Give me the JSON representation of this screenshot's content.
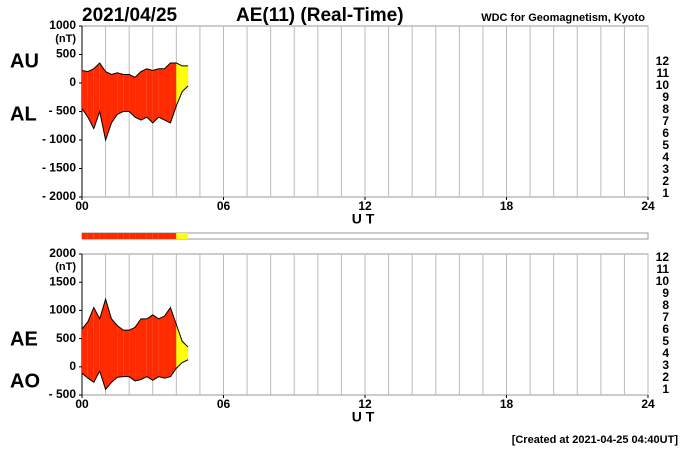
{
  "header": {
    "date": "2021/04/25",
    "title": "AE(11) (Real-Time)",
    "source": "WDC for Geomagnetism, Kyoto"
  },
  "footer": "[Created at 2021-04-25 04:40UT]",
  "chart_data": [
    {
      "type": "area-band",
      "y_unit": "(nT)",
      "x_label": "U T",
      "x": [
        0,
        0.25,
        0.5,
        0.75,
        1,
        1.25,
        1.5,
        1.75,
        2,
        2.25,
        2.5,
        2.75,
        3,
        3.25,
        3.5,
        3.75,
        4,
        4.25,
        4.5
      ],
      "series": [
        {
          "name": "AU",
          "color": "#000000",
          "values": [
            220,
            200,
            250,
            350,
            200,
            150,
            180,
            150,
            150,
            100,
            200,
            250,
            220,
            250,
            250,
            350,
            350,
            300,
            300
          ]
        },
        {
          "name": "AL",
          "color": "#000000",
          "values": [
            -450,
            -600,
            -800,
            -500,
            -1000,
            -700,
            -550,
            -500,
            -500,
            -600,
            -650,
            -600,
            -700,
            -600,
            -650,
            -700,
            -400,
            -150,
            -50
          ]
        }
      ],
      "station_counts": [
        11,
        11,
        11,
        11,
        11,
        11,
        11,
        11,
        11,
        11,
        11,
        11,
        11,
        11,
        11,
        11,
        9,
        9,
        6
      ],
      "xlim": [
        0,
        24
      ],
      "xticks": [
        {
          "value": 0,
          "label": "00"
        },
        {
          "value": 6,
          "label": "06"
        },
        {
          "value": 12,
          "label": "12"
        },
        {
          "value": 18,
          "label": "18"
        },
        {
          "value": 24,
          "label": "24"
        }
      ],
      "xgrid": [
        0,
        1,
        2,
        3,
        4,
        5,
        6,
        7,
        8,
        9,
        10,
        11,
        12,
        13,
        14,
        15,
        16,
        17,
        18,
        19,
        20,
        21,
        22,
        23,
        24
      ],
      "ylim": [
        -2000,
        1000
      ],
      "yticks": [
        1000,
        500,
        0,
        {
          "value": -500,
          "label": "- 500"
        },
        {
          "value": -1000,
          "label": "- 1000"
        },
        {
          "value": -1500,
          "label": "- 1500"
        },
        {
          "value": -2000,
          "label": "- 2000"
        }
      ],
      "legend": [
        {
          "count": 12,
          "color": "#ff0080"
        },
        {
          "count": 11,
          "color": "#ff2a00"
        },
        {
          "count": 10,
          "color": "#ff9900"
        },
        {
          "count": 9,
          "color": "#ffff00"
        },
        {
          "count": 8,
          "color": "#80ff00"
        },
        {
          "count": 7,
          "color": "#00d0d0"
        },
        {
          "count": 6,
          "color": "#0080ff"
        },
        {
          "count": 5,
          "color": "#0000cc"
        },
        {
          "count": 4,
          "color": "#cc00cc"
        },
        {
          "count": 3,
          "color": "#000000"
        },
        {
          "count": 2,
          "color": "#808080"
        },
        {
          "count": 1,
          "color": "#cccccc"
        }
      ]
    },
    {
      "type": "area-band",
      "y_unit": "(nT)",
      "x_label": "U T",
      "x": [
        0,
        0.25,
        0.5,
        0.75,
        1,
        1.25,
        1.5,
        1.75,
        2,
        2.25,
        2.5,
        2.75,
        3,
        3.25,
        3.5,
        3.75,
        4,
        4.25,
        4.5
      ],
      "series": [
        {
          "name": "AE",
          "color": "#000000",
          "values": [
            670,
            800,
            1050,
            850,
            1200,
            850,
            730,
            650,
            650,
            700,
            850,
            850,
            920,
            850,
            900,
            1050,
            750,
            450,
            350
          ]
        },
        {
          "name": "AO",
          "color": "#000000",
          "values": [
            -115,
            -200,
            -275,
            -75,
            -400,
            -275,
            -185,
            -175,
            -175,
            -250,
            -225,
            -175,
            -240,
            -175,
            -200,
            -175,
            -25,
            75,
            125
          ]
        }
      ],
      "station_counts": [
        11,
        11,
        11,
        11,
        11,
        11,
        11,
        11,
        11,
        11,
        11,
        11,
        11,
        11,
        11,
        11,
        9,
        9,
        6
      ],
      "xlim": [
        0,
        24
      ],
      "xticks": [
        {
          "value": 0,
          "label": "00"
        },
        {
          "value": 6,
          "label": "06"
        },
        {
          "value": 12,
          "label": "12"
        },
        {
          "value": 18,
          "label": "18"
        },
        {
          "value": 24,
          "label": "24"
        }
      ],
      "xgrid": [
        0,
        1,
        2,
        3,
        4,
        5,
        6,
        7,
        8,
        9,
        10,
        11,
        12,
        13,
        14,
        15,
        16,
        17,
        18,
        19,
        20,
        21,
        22,
        23,
        24
      ],
      "ylim": [
        -500,
        2000
      ],
      "yticks": [
        2000,
        1500,
        1000,
        500,
        0,
        {
          "value": -500,
          "label": "- 500"
        }
      ],
      "legend": [
        {
          "count": 12,
          "color": "#ff0080"
        },
        {
          "count": 11,
          "color": "#ff2a00"
        },
        {
          "count": 10,
          "color": "#ff9900"
        },
        {
          "count": 9,
          "color": "#ffff00"
        },
        {
          "count": 8,
          "color": "#80ff00"
        },
        {
          "count": 7,
          "color": "#00d0d0"
        },
        {
          "count": 6,
          "color": "#0080ff"
        },
        {
          "count": 5,
          "color": "#0000cc"
        },
        {
          "count": 4,
          "color": "#cc00cc"
        },
        {
          "count": 3,
          "color": "#000000"
        },
        {
          "count": 2,
          "color": "#808080"
        },
        {
          "count": 1,
          "color": "#cccccc"
        }
      ]
    }
  ]
}
